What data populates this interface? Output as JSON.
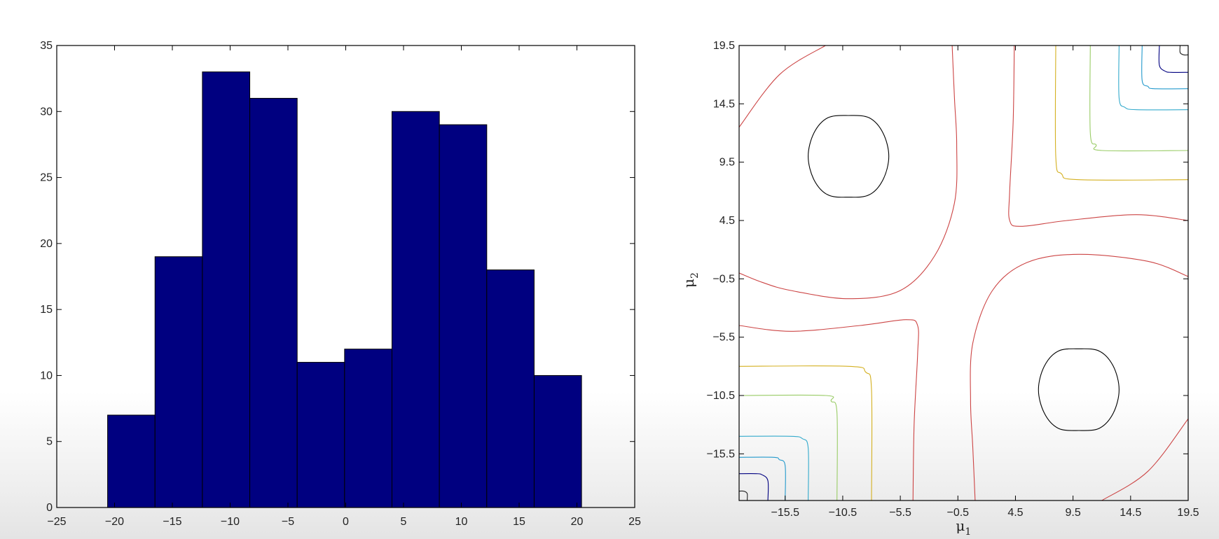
{
  "chart_data": [
    {
      "type": "bar",
      "title": "",
      "xlabel": "",
      "ylabel": "",
      "xlim": [
        -25,
        25
      ],
      "ylim": [
        0,
        35
      ],
      "xticks": [
        -25,
        -20,
        -15,
        -10,
        -5,
        0,
        5,
        10,
        15,
        20,
        25
      ],
      "xtick_labels": [
        "−25",
        "−20",
        "−15",
        "−10",
        "−5",
        "0",
        "5",
        "10",
        "15",
        "20",
        "25"
      ],
      "yticks": [
        0,
        5,
        10,
        15,
        20,
        25,
        30,
        35
      ],
      "ytick_labels": [
        "0",
        "5",
        "10",
        "15",
        "20",
        "25",
        "30",
        "35"
      ],
      "bin_edges": [
        -20.6,
        -16.5,
        -12.4,
        -8.3,
        -4.2,
        -0.1,
        4.0,
        8.1,
        12.2,
        16.3,
        20.4
      ],
      "values": [
        7,
        19,
        33,
        31,
        11,
        12,
        30,
        29,
        18,
        10
      ],
      "bar_color": "#000080",
      "grid": false
    },
    {
      "type": "contour",
      "title": "",
      "xlabel": "μ",
      "xlabel_sub": "1",
      "ylabel": "μ",
      "ylabel_sub": "2",
      "xlim": [
        -19.5,
        19.5
      ],
      "ylim": [
        -19.5,
        19.5
      ],
      "xticks": [
        -15.5,
        -10.5,
        -5.5,
        -0.5,
        4.5,
        9.5,
        14.5,
        19.5
      ],
      "xtick_labels": [
        "−15.5",
        "−10.5",
        "−5.5",
        "−0.5",
        "4.5",
        "9.5",
        "14.5",
        "19.5"
      ],
      "yticks": [
        -15.5,
        -10.5,
        -5.5,
        -0.5,
        4.5,
        9.5,
        14.5,
        19.5
      ],
      "ytick_labels": [
        "−15.5",
        "−10.5",
        "−5.5",
        "−0.5",
        "4.5",
        "9.5",
        "14.5",
        "19.5"
      ],
      "modes": [
        [
          -10,
          10
        ],
        [
          10,
          -10
        ]
      ],
      "grid": false,
      "contours": [
        {
          "color": "#000000",
          "paths": [
            [
              [
                -13.5,
                10
              ],
              [
                -13.0,
                12.0
              ],
              [
                -11.8,
                13.3
              ],
              [
                -10,
                13.5
              ],
              [
                -8.2,
                13.3
              ],
              [
                -7.0,
                12.0
              ],
              [
                -6.5,
                10
              ],
              [
                -7.0,
                8.0
              ],
              [
                -8.2,
                6.7
              ],
              [
                -10,
                6.5
              ],
              [
                -11.8,
                6.7
              ],
              [
                -13.0,
                8.0
              ],
              [
                -13.5,
                10
              ]
            ],
            [
              [
                6.5,
                -10
              ],
              [
                7.0,
                -8.0
              ],
              [
                8.2,
                -6.7
              ],
              [
                10,
                -6.5
              ],
              [
                11.8,
                -6.7
              ],
              [
                13.0,
                -8.0
              ],
              [
                13.5,
                -10
              ],
              [
                13.0,
                -12.0
              ],
              [
                11.8,
                -13.3
              ],
              [
                10,
                -13.5
              ],
              [
                8.2,
                -13.3
              ],
              [
                7.0,
                -12.0
              ],
              [
                6.5,
                -10
              ]
            ]
          ]
        },
        {
          "color": "#cc4444",
          "paths": [
            [
              [
                -19.5,
                12.5
              ],
              [
                -16,
                17.0
              ],
              [
                -12,
                19.5
              ]
            ],
            [
              [
                -19.5,
                0
              ],
              [
                -17.5,
                -0.8
              ],
              [
                -15,
                -1.5
              ],
              [
                -10,
                -2.2
              ],
              [
                -5.5,
                -1.5
              ],
              [
                -2.5,
                1.5
              ],
              [
                -0.8,
                6
              ],
              [
                -0.6,
                11
              ],
              [
                -0.8,
                15
              ],
              [
                -1.0,
                19.5
              ]
            ],
            [
              [
                19.5,
                -0.3
              ],
              [
                16,
                1.0
              ],
              [
                10,
                1.6
              ],
              [
                5.5,
                0.9
              ],
              [
                2.5,
                -1.5
              ],
              [
                0.8,
                -6
              ],
              [
                0.6,
                -11
              ],
              [
                0.8,
                -15
              ],
              [
                1.0,
                -19.5
              ]
            ],
            [
              [
                19.5,
                -12.5
              ],
              [
                16,
                -17.0
              ],
              [
                12,
                -19.5
              ]
            ],
            [
              [
                19.5,
                4.5
              ],
              [
                15,
                5.0
              ],
              [
                9,
                4.5
              ],
              [
                5,
                4.0
              ],
              [
                4,
                4.5
              ],
              [
                4.0,
                7
              ],
              [
                4.3,
                13
              ],
              [
                4.4,
                19.5
              ]
            ],
            [
              [
                -19.5,
                -4.5
              ],
              [
                -15,
                -5.0
              ],
              [
                -9,
                -4.5
              ],
              [
                -5,
                -4.0
              ],
              [
                -4,
                -4.5
              ],
              [
                -4.0,
                -7
              ],
              [
                -4.3,
                -13
              ],
              [
                -4.4,
                -19.5
              ]
            ]
          ]
        },
        {
          "color": "#d4b020",
          "paths": [
            [
              [
                8,
                19.5
              ],
              [
                8,
                10
              ],
              [
                8.5,
                8.5
              ],
              [
                10,
                8
              ],
              [
                19.5,
                8
              ]
            ],
            [
              [
                -8,
                -19.5
              ],
              [
                -8,
                -10
              ],
              [
                -8.5,
                -8.5
              ],
              [
                -10,
                -8
              ],
              [
                -19.5,
                -8
              ]
            ]
          ]
        },
        {
          "color": "#99cc66",
          "paths": [
            [
              [
                11,
                19.5
              ],
              [
                11,
                12
              ],
              [
                11.5,
                11
              ],
              [
                12,
                10.5
              ],
              [
                19.5,
                10.5
              ]
            ],
            [
              [
                -11,
                -19.5
              ],
              [
                -11,
                -12
              ],
              [
                -11.5,
                -11
              ],
              [
                -12,
                -10.5
              ],
              [
                -19.5,
                -10.5
              ]
            ]
          ]
        },
        {
          "color": "#33aacc",
          "paths": [
            [
              [
                13.5,
                19.5
              ],
              [
                13.5,
                15
              ],
              [
                14,
                14.2
              ],
              [
                15,
                14
              ],
              [
                19.5,
                14
              ]
            ],
            [
              [
                -13.5,
                -19.5
              ],
              [
                -13.5,
                -15
              ],
              [
                -14,
                -14.2
              ],
              [
                -15,
                -14
              ],
              [
                -19.5,
                -14
              ]
            ]
          ]
        },
        {
          "color": "#2299cc",
          "paths": [
            [
              [
                15.5,
                19.5
              ],
              [
                15.5,
                16.5
              ],
              [
                16,
                16
              ],
              [
                16.5,
                15.8
              ],
              [
                19.5,
                15.8
              ]
            ],
            [
              [
                -15.5,
                -19.5
              ],
              [
                -15.5,
                -16.5
              ],
              [
                -16,
                -16
              ],
              [
                -16.5,
                -15.8
              ],
              [
                -19.5,
                -15.8
              ]
            ]
          ]
        },
        {
          "color": "#000080",
          "paths": [
            [
              [
                17,
                19.5
              ],
              [
                17,
                17.8
              ],
              [
                17.5,
                17.3
              ],
              [
                18,
                17.2
              ],
              [
                19.5,
                17.2
              ]
            ],
            [
              [
                -17,
                -19.5
              ],
              [
                -17,
                -17.8
              ],
              [
                -17.5,
                -17.3
              ],
              [
                -18,
                -17.2
              ],
              [
                -19.5,
                -17.2
              ]
            ]
          ]
        },
        {
          "color": "#222222",
          "paths": [
            [
              [
                18.8,
                19.5
              ],
              [
                18.8,
                18.9
              ],
              [
                19.1,
                18.7
              ],
              [
                19.5,
                18.7
              ]
            ],
            [
              [
                -18.8,
                -19.5
              ],
              [
                -18.8,
                -18.9
              ],
              [
                -19.1,
                -18.7
              ],
              [
                -19.5,
                -18.7
              ]
            ]
          ]
        }
      ]
    }
  ]
}
